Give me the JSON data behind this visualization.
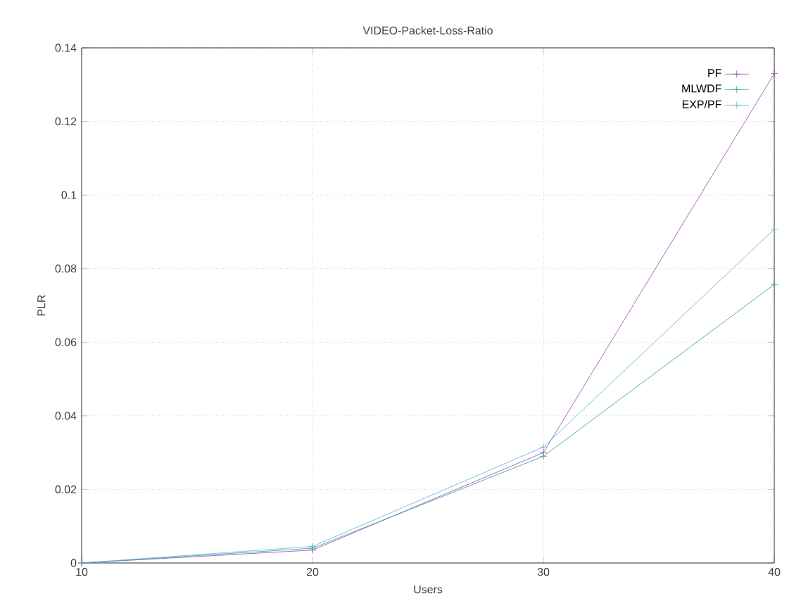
{
  "chart_data": {
    "type": "line",
    "title": "VIDEO-Packet-Loss-Ratio",
    "xlabel": "Users",
    "ylabel": "PLR",
    "x": [
      10,
      20,
      30,
      40
    ],
    "series": [
      {
        "name": "PF",
        "color": "#9b3fb5",
        "marker": "cross",
        "values": [
          0,
          0.0035,
          0.03,
          0.133
        ]
      },
      {
        "name": "MLWDF",
        "color": "#2a9d8f",
        "marker": "cross",
        "values": [
          0,
          0.004,
          0.029,
          0.0757
        ]
      },
      {
        "name": "EXP/PF",
        "color": "#5ab4d0",
        "marker": "cross",
        "values": [
          0,
          0.0045,
          0.0315,
          0.0907
        ]
      }
    ],
    "xlim": [
      10,
      40
    ],
    "ylim": [
      0,
      0.14
    ],
    "xticks": [
      10,
      20,
      30,
      40
    ],
    "yticks": [
      0,
      0.02,
      0.04,
      0.06,
      0.08,
      0.1,
      0.12,
      0.14
    ],
    "grid": true,
    "legend": "top right",
    "line_style": "solid"
  }
}
